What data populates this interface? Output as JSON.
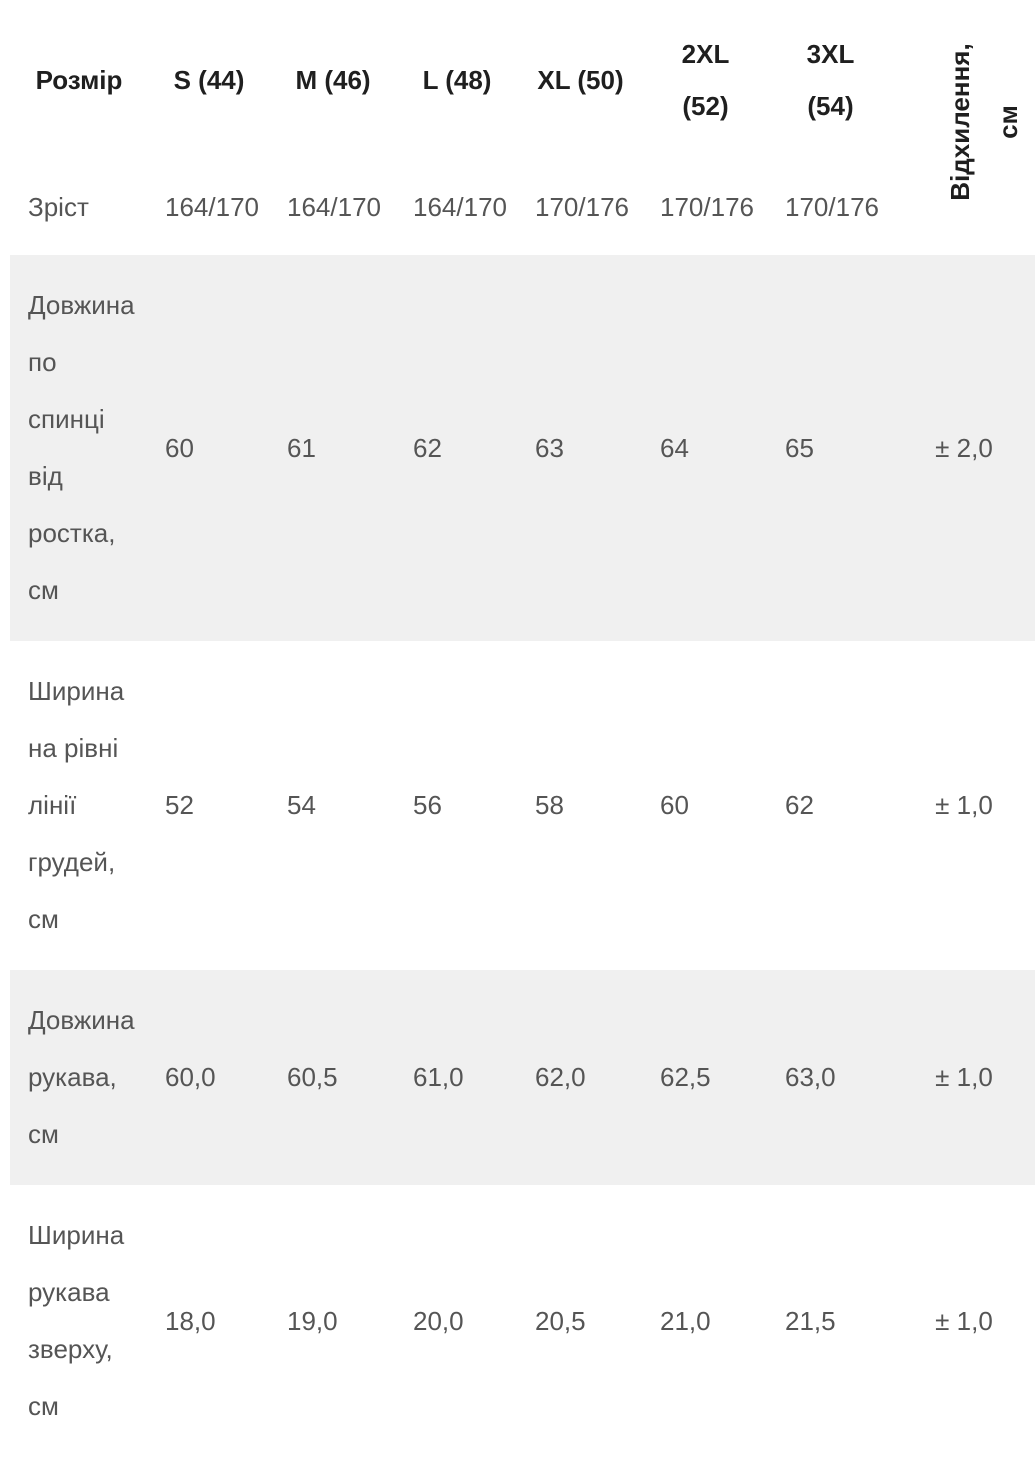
{
  "colors": {
    "page_background": "#ffffff",
    "band_background": "#f0f0f0",
    "header_text": "#1f1f1f",
    "body_text": "#555555"
  },
  "chart_data": {
    "type": "table",
    "title": "",
    "columns": [
      "Розмір",
      "S (44)",
      "M (46)",
      "L (48)",
      "XL (50)",
      "2XL (52)",
      "3XL (54)",
      "Відхилення, см"
    ],
    "header_lines": [
      {
        "l1": "Розмір",
        "l2": ""
      },
      {
        "l1": "S (44)",
        "l2": ""
      },
      {
        "l1": "M (46)",
        "l2": ""
      },
      {
        "l1": "L (48)",
        "l2": ""
      },
      {
        "l1": "XL (50)",
        "l2": ""
      },
      {
        "l1": "2XL",
        "l2": "(52)"
      },
      {
        "l1": "3XL",
        "l2": "(54)"
      },
      {
        "l1": "Відхилення,",
        "l2": "см"
      }
    ],
    "rows": [
      {
        "label": "Зріст",
        "values": [
          "164/170",
          "164/170",
          "164/170",
          "170/176",
          "170/176",
          "170/176"
        ]
      },
      {
        "label": "Довжина по спинці від ростка, см",
        "values": [
          "60",
          "61",
          "62",
          "63",
          "64",
          "65"
        ],
        "deviation": "± 2,0"
      },
      {
        "label": "Ширина на рівні лінії грудей, см",
        "values": [
          "52",
          "54",
          "56",
          "58",
          "60",
          "62"
        ],
        "deviation": "± 1,0"
      },
      {
        "label": "Довжина рукава, см",
        "values": [
          "60,0",
          "60,5",
          "61,0",
          "62,0",
          "62,5",
          "63,0"
        ],
        "deviation": "± 1,0"
      },
      {
        "label": "Ширина рукава зверху, см",
        "values": [
          "18,0",
          "19,0",
          "20,0",
          "20,5",
          "21,0",
          "21,5"
        ],
        "deviation": "± 1,0"
      }
    ]
  }
}
